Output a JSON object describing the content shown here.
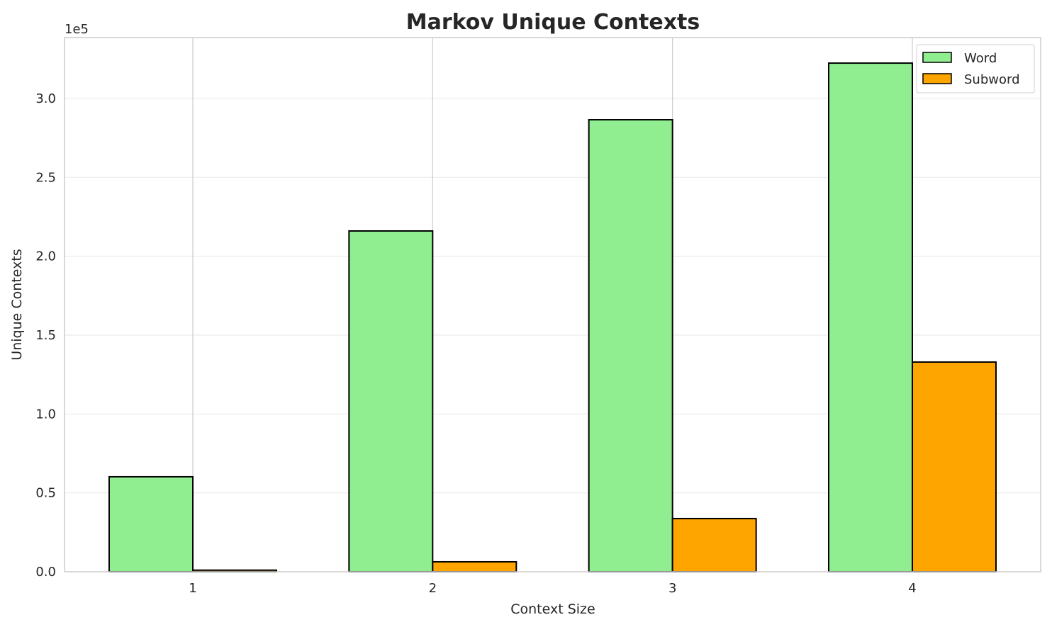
{
  "chart_data": {
    "type": "bar",
    "title": "Markov Unique Contexts",
    "xlabel": "Context Size",
    "ylabel": "Unique Contexts",
    "offset_label": "1e5",
    "categories": [
      "1",
      "2",
      "3",
      "4"
    ],
    "series": [
      {
        "name": "Word",
        "color": "#90EE90",
        "values": [
          60200,
          216000,
          286500,
          322400
        ]
      },
      {
        "name": "Subword",
        "color": "#FFA500",
        "values": [
          1000,
          6300,
          33700,
          132900
        ]
      }
    ],
    "ylim": [
      0,
      338600
    ],
    "yticks": [
      0,
      50000,
      100000,
      150000,
      200000,
      250000,
      300000
    ],
    "ytick_labels": [
      "0.0",
      "0.5",
      "1.0",
      "1.5",
      "2.0",
      "2.5",
      "3.0"
    ],
    "grid": true,
    "legend": "top-right"
  }
}
